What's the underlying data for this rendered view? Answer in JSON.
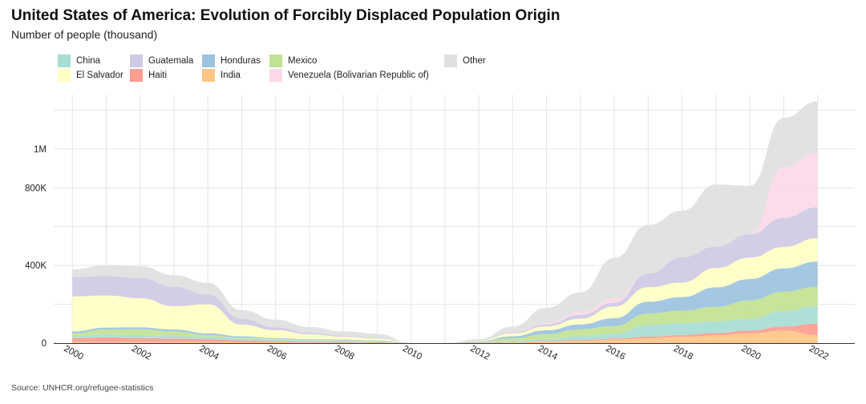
{
  "header": {
    "title": "United States of America:  Evolution of Forcibly Displaced Population Origin",
    "subtitle": "Number of people (thousand)"
  },
  "footer": {
    "source": "Source: UNHCR.org/refugee-statistics"
  },
  "legend": {
    "items": [
      {
        "label": "China",
        "color": "#a8ddd4"
      },
      {
        "label": "El Salvador",
        "color": "#ffffc4"
      },
      {
        "label": "Guatemala",
        "color": "#cfcae4"
      },
      {
        "label": "Haiti",
        "color": "#fb9d90"
      },
      {
        "label": "Honduras",
        "color": "#9cc2e0"
      },
      {
        "label": "India",
        "color": "#fdc585"
      },
      {
        "label": "Mexico",
        "color": "#c2e293"
      },
      {
        "label": "Venezuela (Bolivarian Republic of)",
        "color": "#fcd9e8"
      },
      {
        "label": "Other",
        "color": "#e0e0e0"
      }
    ]
  },
  "chart_data": {
    "type": "area",
    "title": "United States of America:  Evolution of Forcibly Displaced Population Origin",
    "subtitle": "Number of people (thousand)",
    "x": [
      2000,
      2001,
      2002,
      2003,
      2004,
      2005,
      2006,
      2007,
      2008,
      2009,
      2010,
      2011,
      2012,
      2013,
      2014,
      2015,
      2016,
      2017,
      2018,
      2019,
      2020,
      2021,
      2022
    ],
    "x_tick_labels": [
      "2000",
      "2002",
      "2004",
      "2006",
      "2008",
      "2010",
      "2012",
      "2014",
      "2016",
      "2018",
      "2020",
      "2022"
    ],
    "y_tick_values": [
      0,
      400000,
      800000,
      1000000
    ],
    "y_tick_labels": [
      "0",
      "400K",
      "800K",
      "1M"
    ],
    "ylim": [
      0,
      1280000
    ],
    "grid": true,
    "legend_position": "top-left",
    "stack_order": [
      "India",
      "Haiti",
      "China",
      "Mexico",
      "Honduras",
      "El Salvador",
      "Guatemala",
      "Venezuela (Bolivarian Republic of)",
      "Other"
    ],
    "series": [
      {
        "name": "India",
        "values": [
          5000,
          5000,
          6000,
          6000,
          5000,
          4000,
          4000,
          3000,
          3000,
          2000,
          0,
          0,
          1000,
          3000,
          8000,
          12000,
          18000,
          25000,
          32000,
          40000,
          50000,
          65000,
          40000
        ]
      },
      {
        "name": "Haiti",
        "values": [
          20000,
          25000,
          20000,
          18000,
          15000,
          10000,
          6000,
          4000,
          3000,
          2000,
          0,
          0,
          1000,
          2000,
          3000,
          4000,
          5000,
          8000,
          10000,
          12000,
          15000,
          20000,
          60000
        ]
      },
      {
        "name": "China",
        "values": [
          10000,
          15000,
          15000,
          13000,
          12000,
          10000,
          8000,
          7000,
          6000,
          5000,
          0,
          0,
          3000,
          5000,
          10000,
          20000,
          25000,
          60000,
          60000,
          60000,
          60000,
          80000,
          90000
        ]
      },
      {
        "name": "Mexico",
        "values": [
          15000,
          25000,
          30000,
          23000,
          10000,
          5000,
          4000,
          3000,
          3000,
          3000,
          0,
          0,
          3000,
          15000,
          25000,
          35000,
          40000,
          60000,
          65000,
          75000,
          95000,
          100000,
          100000
        ]
      },
      {
        "name": "Honduras",
        "values": [
          10000,
          10000,
          10000,
          10000,
          8000,
          6000,
          4000,
          3000,
          3000,
          2000,
          0,
          0,
          2000,
          10000,
          20000,
          25000,
          40000,
          60000,
          70000,
          100000,
          110000,
          120000,
          130000
        ]
      },
      {
        "name": "El Salvador",
        "values": [
          180000,
          165000,
          150000,
          120000,
          150000,
          60000,
          40000,
          25000,
          15000,
          10000,
          0,
          0,
          3000,
          15000,
          20000,
          30000,
          60000,
          75000,
          75000,
          100000,
          110000,
          110000,
          120000
        ]
      },
      {
        "name": "Guatemala",
        "values": [
          100000,
          100000,
          105000,
          100000,
          50000,
          30000,
          15000,
          8000,
          5000,
          4000,
          0,
          0,
          2000,
          5000,
          10000,
          20000,
          20000,
          70000,
          130000,
          110000,
          120000,
          150000,
          160000
        ]
      },
      {
        "name": "Venezuela (Bolivarian Republic of)",
        "values": [
          0,
          0,
          0,
          0,
          0,
          0,
          0,
          0,
          0,
          0,
          0,
          0,
          0,
          0,
          5000,
          15000,
          20000,
          0,
          0,
          0,
          0,
          260000,
          280000
        ]
      },
      {
        "name": "Other",
        "values": [
          40000,
          55000,
          60000,
          60000,
          60000,
          45000,
          40000,
          30000,
          22000,
          20000,
          0,
          0,
          5000,
          30000,
          80000,
          100000,
          210000,
          250000,
          240000,
          320000,
          250000,
          255000,
          265000
        ]
      }
    ]
  }
}
